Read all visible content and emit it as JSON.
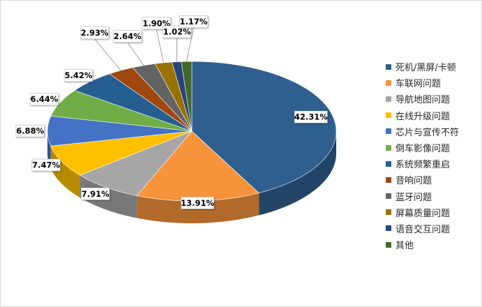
{
  "chart_data": {
    "type": "pie",
    "title": "",
    "categories": [
      "死机/黑屏/卡顿",
      "车联网问题",
      "导航地图问题",
      "在线升级问题",
      "芯片与宣传不符",
      "倒车影像问题",
      "系统频繁重启",
      "音响问题",
      "蓝牙问题",
      "屏幕质量问题",
      "语音交互问题",
      "其他"
    ],
    "values": [
      42.31,
      13.91,
      7.91,
      7.47,
      6.88,
      6.44,
      5.42,
      2.93,
      2.64,
      1.9,
      1.02,
      1.17
    ],
    "labels": [
      "42.31%",
      "13.91%",
      "7.91%",
      "7.47%",
      "6.88%",
      "6.44%",
      "5.42%",
      "2.93%",
      "2.64%",
      "1.90%",
      "1.02%",
      "1.17%"
    ],
    "colors": [
      "#2e5f8f",
      "#f7933a",
      "#a6a6a6",
      "#ffc000",
      "#4472c4",
      "#70ad47",
      "#255e91",
      "#9e480e",
      "#636363",
      "#997300",
      "#264478",
      "#43682b"
    ],
    "style": "3d-pie",
    "legend_position": "right"
  }
}
